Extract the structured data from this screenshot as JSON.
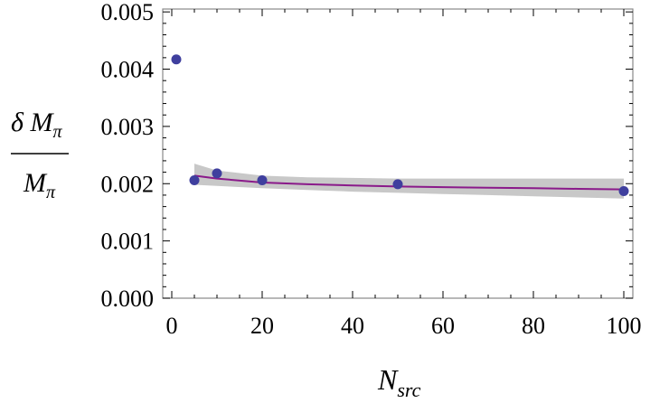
{
  "chart_data": {
    "type": "scatter",
    "xlabel": {
      "main": "N",
      "sub": "src"
    },
    "ylabel": {
      "numerator": "δ M",
      "numerator_sub": "π",
      "denominator": "M",
      "denominator_sub": "π"
    },
    "xlim": [
      -2,
      102
    ],
    "ylim": [
      0,
      0.00505
    ],
    "x_ticks": [
      "0",
      "20",
      "40",
      "60",
      "80",
      "100"
    ],
    "x_tick_values": [
      0,
      20,
      40,
      60,
      80,
      100
    ],
    "y_ticks": [
      "0.000",
      "0.001",
      "0.002",
      "0.003",
      "0.004",
      "0.005"
    ],
    "y_tick_values": [
      0,
      0.001,
      0.002,
      0.003,
      0.004,
      0.005
    ],
    "points": {
      "x": [
        1,
        5,
        10,
        20,
        50,
        100
      ],
      "y": [
        0.00417,
        0.00206,
        0.00218,
        0.00206,
        0.00199,
        0.00187
      ]
    },
    "fit": {
      "x": [
        5,
        10,
        20,
        30,
        40,
        50,
        60,
        70,
        80,
        90,
        100
      ],
      "y": [
        0.00214,
        0.00209,
        0.00202,
        0.00199,
        0.00197,
        0.00195,
        0.00194,
        0.00193,
        0.00192,
        0.00191,
        0.0019
      ],
      "band_upper": [
        0.00235,
        0.00223,
        0.00214,
        0.00211,
        0.0021,
        0.00209,
        0.00209,
        0.00209,
        0.00209,
        0.00209,
        0.00209
      ],
      "band_lower": [
        0.00198,
        0.00196,
        0.00192,
        0.00189,
        0.00186,
        0.00184,
        0.00182,
        0.0018,
        0.00178,
        0.00176,
        0.00174
      ]
    },
    "grid": false,
    "colors": {
      "points": "#3f3f9e",
      "fit_line": "#8a1a8a",
      "band": "#c8c8c8",
      "frame": "#888888"
    }
  }
}
